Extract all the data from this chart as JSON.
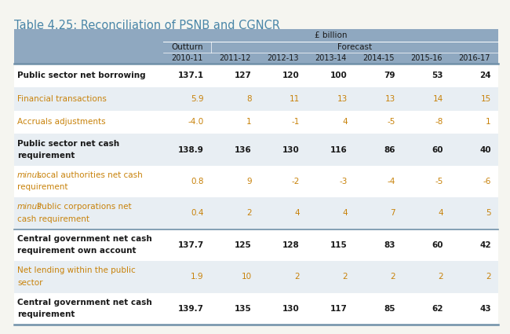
{
  "title": "Table 4.25: Reconciliation of PSNB and CGNCR",
  "title_color": "#4a86a8",
  "header_bg": "#8fa8c0",
  "background": "#f5f5f0",
  "table_bg": "#ffffff",
  "alt_row_bg": "#e8eef3",
  "separator_color": "#7090a8",
  "columns": [
    "2010-11",
    "2011-12",
    "2012-13",
    "2013-14",
    "2014-15",
    "2015-16",
    "2016-17"
  ],
  "rows": [
    {
      "label": "Public sector net borrowing",
      "label2": "",
      "values": [
        "137.1",
        "127",
        "120",
        "100",
        "79",
        "53",
        "24"
      ],
      "bold": true,
      "italic_minus": false,
      "color": "#1a1a1a",
      "alt": false
    },
    {
      "label": "Financial transactions",
      "label2": "",
      "values": [
        "5.9",
        "8",
        "11",
        "13",
        "13",
        "14",
        "15"
      ],
      "bold": false,
      "italic_minus": false,
      "color": "#c8820a",
      "alt": true
    },
    {
      "label": "Accruals adjustments",
      "label2": "",
      "values": [
        "-4.0",
        "1",
        "-1",
        "4",
        "-5",
        "-8",
        "1"
      ],
      "bold": false,
      "italic_minus": false,
      "color": "#c8820a",
      "alt": false
    },
    {
      "label": "Public sector net cash",
      "label2": "requirement",
      "values": [
        "138.9",
        "136",
        "130",
        "116",
        "86",
        "60",
        "40"
      ],
      "bold": true,
      "italic_minus": false,
      "color": "#1a1a1a",
      "alt": true
    },
    {
      "label": "minus  Local authorities net cash",
      "label2": "requirement",
      "values": [
        "0.8",
        "9",
        "-2",
        "-3",
        "-4",
        "-5",
        "-6"
      ],
      "bold": false,
      "italic_minus": true,
      "color": "#c8820a",
      "alt": false
    },
    {
      "label": "minus  Public corporations net",
      "label2": "cash requirement",
      "values": [
        "0.4",
        "2",
        "4",
        "4",
        "7",
        "4",
        "5"
      ],
      "bold": false,
      "italic_minus": true,
      "color": "#c8820a",
      "alt": true
    },
    {
      "label": "Central government net cash",
      "label2": "requirement own account",
      "values": [
        "137.7",
        "125",
        "128",
        "115",
        "83",
        "60",
        "42"
      ],
      "bold": true,
      "italic_minus": false,
      "color": "#1a1a1a",
      "alt": false,
      "separator_above": true
    },
    {
      "label": "Net lending within the public",
      "label2": "sector",
      "values": [
        "1.9",
        "10",
        "2",
        "2",
        "2",
        "2",
        "2"
      ],
      "bold": false,
      "italic_minus": false,
      "color": "#c8820a",
      "alt": true
    },
    {
      "label": "Central government net cash",
      "label2": "requirement",
      "values": [
        "139.7",
        "135",
        "130",
        "117",
        "85",
        "62",
        "43"
      ],
      "bold": true,
      "italic_minus": false,
      "color": "#1a1a1a",
      "alt": false
    }
  ]
}
